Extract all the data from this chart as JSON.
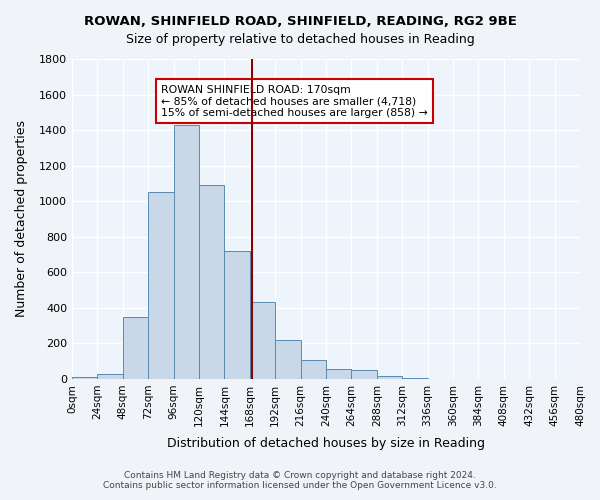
{
  "title": "ROWAN, SHINFIELD ROAD, SHINFIELD, READING, RG2 9BE",
  "subtitle": "Size of property relative to detached houses in Reading",
  "xlabel": "Distribution of detached houses by size in Reading",
  "ylabel": "Number of detached properties",
  "bar_color": "#c8d8e8",
  "bar_edge_color": "#5a8ab0",
  "background_color": "#eef4fb",
  "grid_color": "#ffffff",
  "vline_x": 170,
  "vline_color": "#8b0000",
  "bin_edges": [
    0,
    24,
    48,
    72,
    96,
    120,
    144,
    168,
    192,
    216,
    240,
    264,
    288,
    312,
    336,
    360,
    384,
    408,
    432,
    456,
    480
  ],
  "bar_heights": [
    10,
    30,
    350,
    1050,
    1430,
    1090,
    720,
    430,
    220,
    105,
    55,
    50,
    15,
    5,
    2,
    1,
    0,
    0,
    0,
    0
  ],
  "annotation_title": "ROWAN SHINFIELD ROAD: 170sqm",
  "annotation_line1": "← 85% of detached houses are smaller (4,718)",
  "annotation_line2": "15% of semi-detached houses are larger (858) →",
  "annotation_box_color": "#ffffff",
  "annotation_box_edge": "#cc0000",
  "tick_labels": [
    "0sqm",
    "24sqm",
    "48sqm",
    "72sqm",
    "96sqm",
    "120sqm",
    "144sqm",
    "168sqm",
    "192sqm",
    "216sqm",
    "240sqm",
    "264sqm",
    "288sqm",
    "312sqm",
    "336sqm",
    "360sqm",
    "384sqm",
    "408sqm",
    "432sqm",
    "456sqm",
    "480sqm"
  ],
  "footer_line1": "Contains HM Land Registry data © Crown copyright and database right 2024.",
  "footer_line2": "Contains public sector information licensed under the Open Government Licence v3.0.",
  "ylim": [
    0,
    1800
  ],
  "yticks": [
    0,
    200,
    400,
    600,
    800,
    1000,
    1200,
    1400,
    1600,
    1800
  ]
}
